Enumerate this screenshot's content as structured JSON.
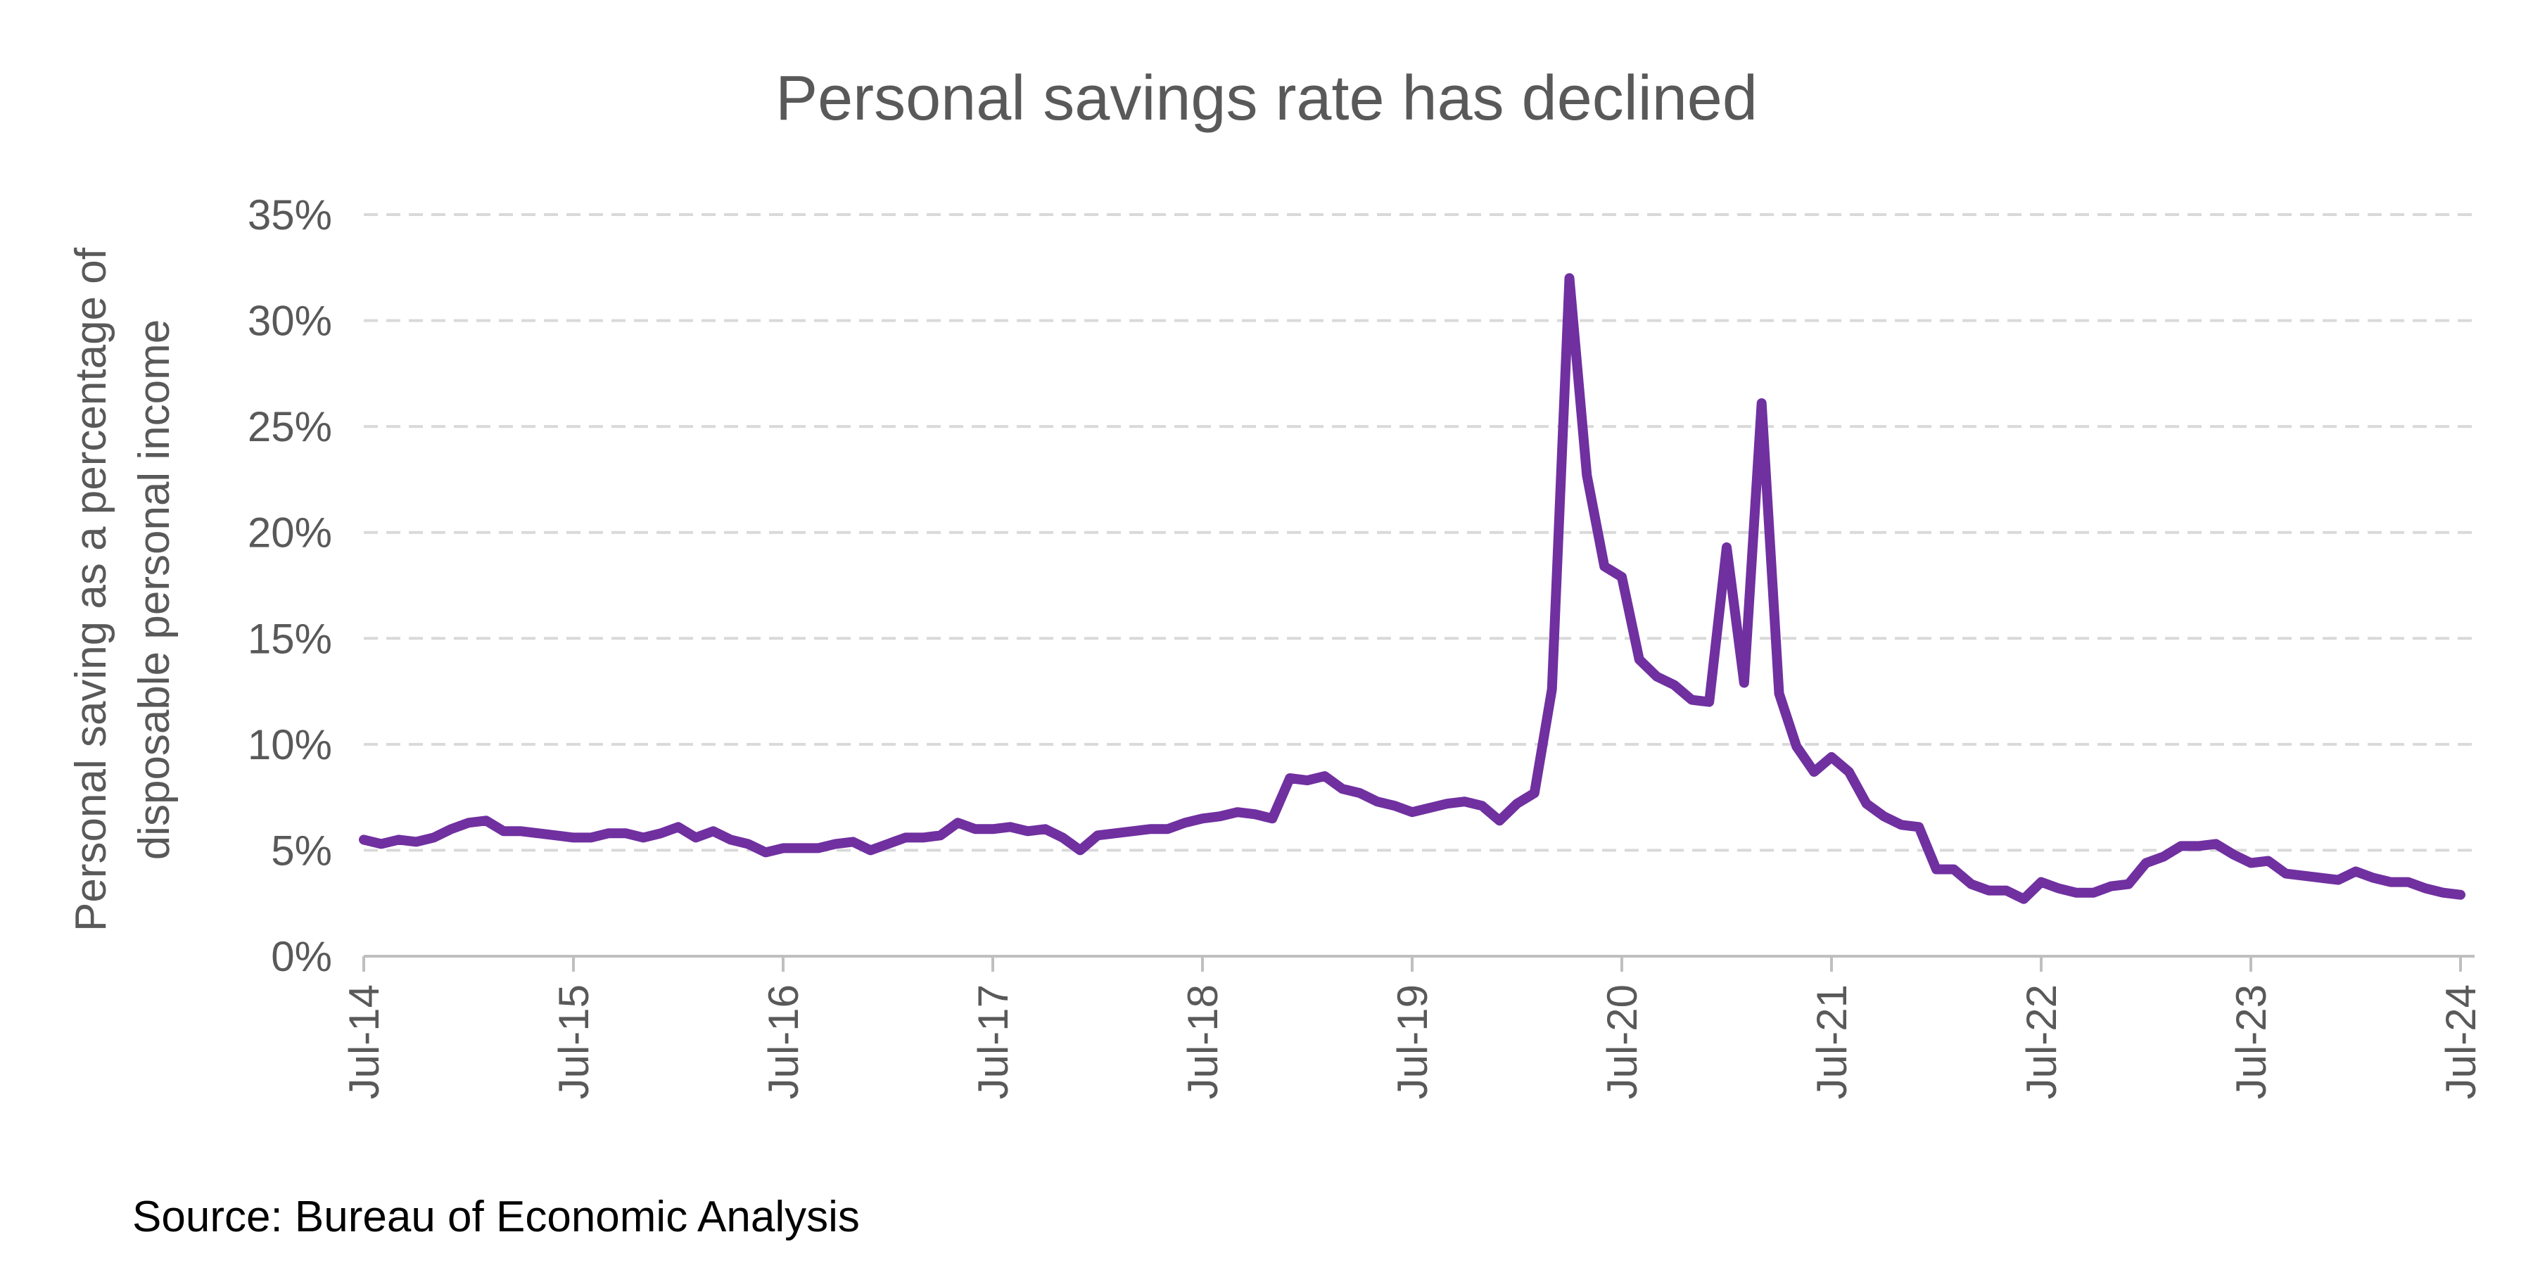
{
  "chart_data": {
    "type": "line",
    "title": "Personal savings rate has declined",
    "y_label": [
      "Personal saving as a percentage of",
      "disposable personal income"
    ],
    "source": "Source: Bureau of Economic Analysis",
    "categories": [
      "Jul-14",
      null,
      null,
      null,
      null,
      null,
      null,
      null,
      null,
      null,
      null,
      null,
      "Jul-15",
      null,
      null,
      null,
      null,
      null,
      null,
      null,
      null,
      null,
      null,
      null,
      "Jul-16",
      null,
      null,
      null,
      null,
      null,
      null,
      null,
      null,
      null,
      null,
      null,
      "Jul-17",
      null,
      null,
      null,
      null,
      null,
      null,
      null,
      null,
      null,
      null,
      null,
      "Jul-18",
      null,
      null,
      null,
      null,
      null,
      null,
      null,
      null,
      null,
      null,
      null,
      "Jul-19",
      null,
      null,
      null,
      null,
      null,
      null,
      null,
      null,
      null,
      null,
      null,
      "Jul-20",
      null,
      null,
      null,
      null,
      null,
      null,
      null,
      null,
      null,
      null,
      null,
      "Jul-21",
      null,
      null,
      null,
      null,
      null,
      null,
      null,
      null,
      null,
      null,
      null,
      "Jul-22",
      null,
      null,
      null,
      null,
      null,
      null,
      null,
      null,
      null,
      null,
      null,
      "Jul-23",
      null,
      null,
      null,
      null,
      null,
      null,
      null,
      null,
      null,
      null,
      null,
      "Jul-24"
    ],
    "series": [
      {
        "color": "#7030a0",
        "values": [
          5.5,
          5.3,
          5.5,
          5.4,
          5.6,
          6.0,
          6.3,
          6.4,
          5.9,
          5.9,
          5.8,
          5.7,
          5.6,
          5.6,
          5.8,
          5.8,
          5.6,
          5.8,
          6.1,
          5.6,
          5.9,
          5.5,
          5.3,
          4.9,
          5.1,
          5.1,
          5.1,
          5.3,
          5.4,
          5.0,
          5.3,
          5.6,
          5.6,
          5.7,
          6.3,
          6.0,
          6.0,
          6.1,
          5.9,
          6.0,
          5.6,
          5.0,
          5.7,
          5.8,
          5.9,
          6.0,
          6.0,
          6.3,
          6.5,
          6.6,
          6.8,
          6.7,
          6.5,
          8.4,
          8.3,
          8.5,
          7.9,
          7.7,
          7.3,
          7.1,
          6.8,
          7.0,
          7.2,
          7.3,
          7.1,
          6.4,
          7.2,
          7.7,
          12.6,
          32.0,
          22.7,
          18.4,
          17.9,
          14.0,
          13.2,
          12.8,
          12.1,
          12.0,
          19.3,
          12.9,
          26.1,
          12.4,
          9.9,
          8.7,
          9.4,
          8.7,
          7.2,
          6.6,
          6.2,
          6.1,
          4.1,
          4.1,
          3.4,
          3.1,
          3.1,
          2.7,
          3.5,
          3.2,
          3.0,
          3.0,
          3.3,
          3.4,
          4.4,
          4.7,
          5.2,
          5.2,
          5.3,
          4.8,
          4.4,
          4.5,
          3.9,
          3.8,
          3.7,
          3.6,
          4.0,
          3.7,
          3.5,
          3.5,
          3.2,
          3.0,
          2.9
        ]
      }
    ],
    "ylim": [
      0,
      35
    ],
    "yticks": [
      {
        "value": 0,
        "label": "0%"
      },
      {
        "value": 5,
        "label": "5%"
      },
      {
        "value": 10,
        "label": "10%"
      },
      {
        "value": 15,
        "label": "15%"
      },
      {
        "value": 20,
        "label": "20%"
      },
      {
        "value": 25,
        "label": "25%"
      },
      {
        "value": 30,
        "label": "30%"
      },
      {
        "value": 35,
        "label": "35%"
      }
    ],
    "grid": true
  }
}
